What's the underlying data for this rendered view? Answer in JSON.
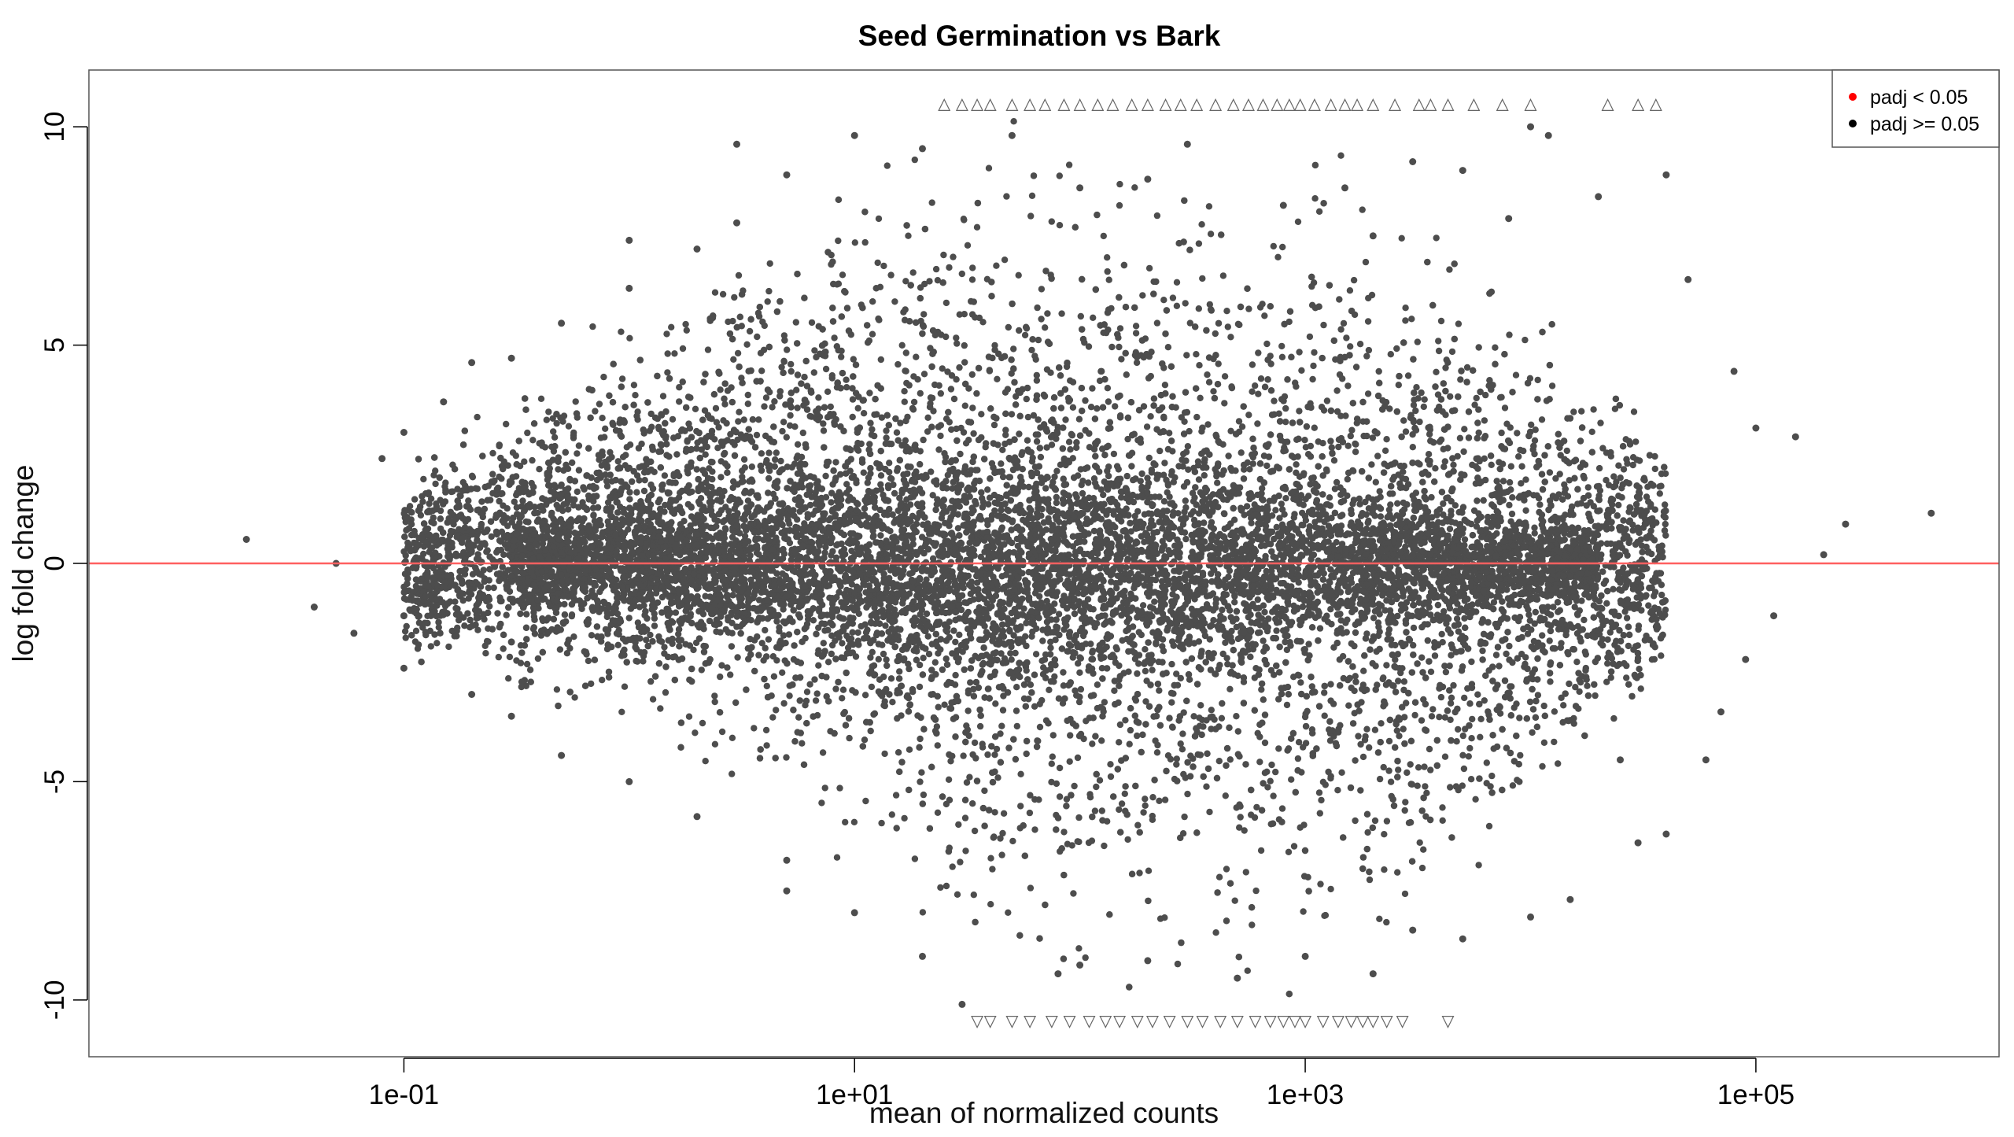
{
  "chart_data": {
    "type": "scatter",
    "title": "Seed Germination vs Bark",
    "xlabel": "mean of normalized counts",
    "ylabel": "log fold change",
    "x_scale": "log10",
    "xlim": [
      0.004,
      1200000
    ],
    "ylim": [
      -11.3,
      11.3
    ],
    "x_ticks": [
      {
        "value": 0.1,
        "label": "1e-01"
      },
      {
        "value": 10,
        "label": "1e+01"
      },
      {
        "value": 1000,
        "label": "1e+03"
      },
      {
        "value": 100000,
        "label": "1e+05"
      }
    ],
    "y_ticks": [
      {
        "value": -10,
        "label": "-10"
      },
      {
        "value": -5,
        "label": "-5"
      },
      {
        "value": 0,
        "label": "0"
      },
      {
        "value": 5,
        "label": "5"
      },
      {
        "value": 10,
        "label": "10"
      }
    ],
    "reference_line": {
      "y": 0,
      "color": "#ff6060"
    },
    "grid": false,
    "legend": {
      "position": "top-right",
      "entries": [
        {
          "label": "padj < 0.05",
          "color": "#ff0000"
        },
        {
          "label": "padj >= 0.05",
          "color": "#000000"
        }
      ]
    },
    "point_color": "#4d4d4d",
    "series": [
      {
        "name": "padj >= 0.05",
        "points": [
          [
            0.02,
            0.55
          ],
          [
            0.05,
            0.0
          ],
          [
            0.04,
            -1.0
          ],
          [
            0.06,
            -1.6
          ],
          [
            0.08,
            2.4
          ],
          [
            0.1,
            3.0
          ],
          [
            0.1,
            -1.2
          ],
          [
            0.1,
            -2.4
          ],
          [
            0.12,
            0.6
          ],
          [
            0.15,
            3.7
          ],
          [
            0.2,
            4.6
          ],
          [
            0.2,
            -3.0
          ],
          [
            0.3,
            4.7
          ],
          [
            0.3,
            -3.5
          ],
          [
            0.3,
            -1.8
          ],
          [
            0.5,
            5.5
          ],
          [
            0.5,
            -4.4
          ],
          [
            1.0,
            6.3
          ],
          [
            1.0,
            -5.0
          ],
          [
            1.0,
            7.4
          ],
          [
            2.0,
            7.2
          ],
          [
            2.0,
            -5.8
          ],
          [
            3.0,
            9.6
          ],
          [
            3.0,
            7.8
          ],
          [
            5.0,
            8.9
          ],
          [
            5.0,
            -6.8
          ],
          [
            5.0,
            -7.5
          ],
          [
            10,
            9.8
          ],
          [
            10,
            -8.0
          ],
          [
            20,
            9.5
          ],
          [
            20,
            -9.0
          ],
          [
            30,
            -10.1
          ],
          [
            50,
            9.8
          ],
          [
            80,
            -9.4
          ],
          [
            100,
            8.6
          ],
          [
            100,
            -9.2
          ],
          [
            200,
            8.8
          ],
          [
            200,
            -9.1
          ],
          [
            300,
            9.6
          ],
          [
            500,
            -9.5
          ],
          [
            800,
            8.2
          ],
          [
            1000,
            -9.0
          ],
          [
            1500,
            8.6
          ],
          [
            2000,
            7.5
          ],
          [
            2000,
            -9.4
          ],
          [
            3000,
            9.2
          ],
          [
            3000,
            -8.4
          ],
          [
            5000,
            9.0
          ],
          [
            5000,
            -8.6
          ],
          [
            8000,
            7.9
          ],
          [
            10000,
            10.0
          ],
          [
            10000,
            -8.1
          ],
          [
            12000,
            9.8
          ],
          [
            15000,
            -7.7
          ],
          [
            20000,
            8.4
          ],
          [
            30000,
            -6.4
          ],
          [
            40000,
            8.9
          ],
          [
            50000,
            6.5
          ],
          [
            60000,
            -4.5
          ],
          [
            80000,
            4.4
          ],
          [
            100000,
            3.1
          ],
          [
            150000,
            2.9
          ],
          [
            200000,
            0.2
          ],
          [
            250000,
            0.9
          ],
          [
            600000,
            1.15
          ],
          [
            120000,
            -1.2
          ],
          [
            90000,
            -2.2
          ],
          [
            70000,
            -3.4
          ],
          [
            40000,
            -6.2
          ],
          [
            25000,
            -4.5
          ]
        ]
      }
    ],
    "clipped_markers": {
      "upper_y": 10.5,
      "lower_y": -10.5,
      "upper_x": [
        25,
        30,
        35,
        40,
        50,
        60,
        70,
        85,
        100,
        120,
        140,
        170,
        200,
        240,
        280,
        330,
        400,
        480,
        560,
        650,
        750,
        850,
        950,
        1100,
        1300,
        1500,
        1700,
        2000,
        2500,
        3200,
        3600,
        4300,
        5600,
        7500,
        10000,
        22000,
        30000,
        36000
      ],
      "lower_x": [
        35,
        40,
        50,
        60,
        75,
        90,
        110,
        130,
        150,
        180,
        210,
        250,
        300,
        350,
        420,
        500,
        600,
        700,
        800,
        900,
        1000,
        1200,
        1400,
        1600,
        1800,
        2000,
        2300,
        2700,
        4300
      ]
    },
    "density_cloud": {
      "x_min": 0.1,
      "x_max": 40000,
      "envelope_upper": [
        [
          0.1,
          2.5
        ],
        [
          1,
          6.2
        ],
        [
          5,
          8.8
        ],
        [
          20,
          10.5
        ],
        [
          2000,
          10.5
        ],
        [
          40000,
          3.5
        ]
      ],
      "envelope_lower": [
        [
          0.1,
          -2.5
        ],
        [
          1,
          -5.0
        ],
        [
          10,
          -7.5
        ],
        [
          40,
          -10.5
        ],
        [
          2000,
          -10.5
        ],
        [
          40000,
          -3.5
        ]
      ]
    }
  }
}
